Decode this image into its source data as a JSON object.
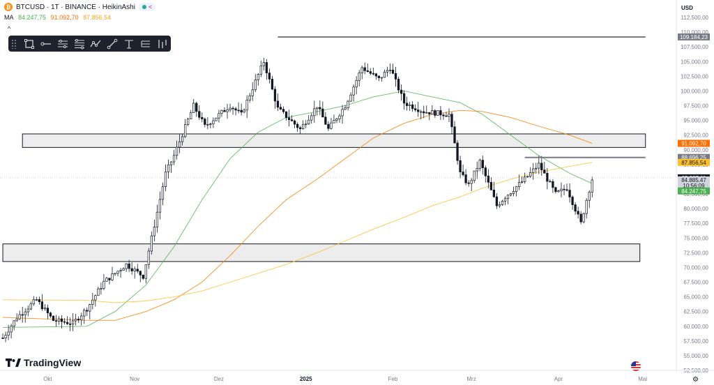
{
  "header": {
    "symbol": "BTCUSD · 1T · BINANCE · HeikinAshi",
    "ma_label": "MA",
    "ma_values": [
      "84.247,75",
      "91.092,70",
      "87.856,54"
    ],
    "ma_colors": [
      "#4caf50",
      "#ff6d00",
      "#fbc02d"
    ],
    "currency": "USD",
    "collapse_glyph": "^"
  },
  "toolbar": {
    "tools": [
      "rectangle-tool-icon",
      "horizontal-ray-icon",
      "parallel-channel-icon",
      "fib-retracement-icon",
      "path-icon",
      "trend-line-icon",
      "anchored-vwap-icon",
      "long-position-icon",
      "forecast-icon"
    ]
  },
  "branding": {
    "logo_text": "TradingView"
  },
  "chart_data": {
    "type": "candlestick",
    "ylim": [
      52500,
      112500
    ],
    "ytick_labels": [
      "112.500,00",
      "110.000,00",
      "107.500,00",
      "105.000,00",
      "102.500,00",
      "100.000,00",
      "97.500,00",
      "95.000,00",
      "92.500,00",
      "90.000,00",
      "87.500,00",
      "85.000,00",
      "82.500,00",
      "80.000,00",
      "77.500,00",
      "75.000,00",
      "72.500,00",
      "70.000,00",
      "67.500,00",
      "65.000,00",
      "62.500,00",
      "60.000,00",
      "57.500,00",
      "55.000,00",
      "52.500,00"
    ],
    "ytick_values": [
      112500,
      110000,
      107500,
      105000,
      102500,
      100000,
      97500,
      95000,
      92500,
      90000,
      87500,
      85000,
      82500,
      80000,
      77500,
      75000,
      72500,
      70000,
      67500,
      65000,
      62500,
      60000,
      57500,
      55000,
      52500
    ],
    "xticks": [
      {
        "label": "Okt",
        "date": "2024-10-01"
      },
      {
        "label": "Nov",
        "date": "2024-11-01"
      },
      {
        "label": "Dez",
        "date": "2024-12-01"
      },
      {
        "label": "2025",
        "date": "2025-01-01"
      },
      {
        "label": "Feb",
        "date": "2025-02-01"
      },
      {
        "label": "Mrz",
        "date": "2025-03-01"
      },
      {
        "label": "Apr",
        "date": "2025-04-01"
      },
      {
        "label": "Mai",
        "date": "2025-05-01"
      }
    ],
    "price_labels": [
      {
        "text": "109.184,23",
        "value": 109184,
        "color": "#787b86"
      },
      {
        "text": "91.092,70",
        "value": 91093,
        "color": "#ff6d00"
      },
      {
        "text": "88.696,25",
        "value": 88696,
        "color": "#787b86"
      },
      {
        "text": "87.856,54",
        "value": 87857,
        "color": "#fbc02d"
      },
      {
        "text": "85.237,11",
        "value": 85237,
        "color": "#131722"
      },
      {
        "text": "84.885,47",
        "value": 84885,
        "color": "#d1d4dc"
      },
      {
        "text": "10:56:09",
        "value": 83900,
        "color": "#d1d4dc"
      },
      {
        "text": "84.247,75",
        "value": 83000,
        "color": "#4caf50"
      }
    ],
    "hlines": [
      {
        "value": 109184,
        "from": "2024-12-22",
        "to": "2025-05-02",
        "color": "#787b86"
      },
      {
        "value": 88696,
        "from": "2025-03-20",
        "to": "2025-05-02",
        "color": "#787b86"
      }
    ],
    "zones": [
      {
        "from": "2024-09-22",
        "to": "2025-05-02",
        "low": 90400,
        "high": 92700
      },
      {
        "from": "2024-09-15",
        "to": "2025-04-30",
        "low": 71000,
        "high": 74000
      }
    ],
    "series": {
      "ma_green": [
        [
          "2024-09-15",
          59800
        ],
        [
          "2024-10-15",
          60000
        ],
        [
          "2024-10-25",
          62500
        ],
        [
          "2024-11-05",
          67000
        ],
        [
          "2024-11-15",
          73500
        ],
        [
          "2024-11-25",
          81500
        ],
        [
          "2024-12-05",
          88500
        ],
        [
          "2024-12-15",
          93000
        ],
        [
          "2024-12-25",
          95500
        ],
        [
          "2025-01-05",
          96500
        ],
        [
          "2025-01-15",
          97500
        ],
        [
          "2025-01-25",
          99000
        ],
        [
          "2025-02-05",
          100000
        ],
        [
          "2025-02-15",
          99000
        ],
        [
          "2025-02-25",
          98000
        ],
        [
          "2025-03-05",
          96000
        ],
        [
          "2025-03-15",
          92500
        ],
        [
          "2025-03-25",
          89000
        ],
        [
          "2025-04-05",
          86000
        ],
        [
          "2025-04-13",
          84250
        ]
      ],
      "ma_orange": [
        [
          "2024-09-15",
          61500
        ],
        [
          "2024-10-15",
          61000
        ],
        [
          "2024-10-25",
          61000
        ],
        [
          "2024-11-05",
          62500
        ],
        [
          "2024-11-15",
          64500
        ],
        [
          "2024-11-25",
          67500
        ],
        [
          "2024-12-05",
          72000
        ],
        [
          "2024-12-15",
          77000
        ],
        [
          "2024-12-25",
          81500
        ],
        [
          "2025-01-05",
          85000
        ],
        [
          "2025-01-15",
          88500
        ],
        [
          "2025-01-25",
          92000
        ],
        [
          "2025-02-05",
          94500
        ],
        [
          "2025-02-15",
          96000
        ],
        [
          "2025-02-25",
          96700
        ],
        [
          "2025-03-05",
          96500
        ],
        [
          "2025-03-15",
          95500
        ],
        [
          "2025-03-25",
          94000
        ],
        [
          "2025-04-05",
          92500
        ],
        [
          "2025-04-13",
          91090
        ]
      ],
      "ma_yellow": [
        [
          "2024-09-15",
          64500
        ],
        [
          "2024-10-15",
          64400
        ],
        [
          "2024-10-25",
          64000
        ],
        [
          "2024-11-05",
          64300
        ],
        [
          "2024-11-15",
          65000
        ],
        [
          "2024-11-25",
          66000
        ],
        [
          "2024-12-05",
          67500
        ],
        [
          "2024-12-15",
          69000
        ],
        [
          "2024-12-25",
          70500
        ],
        [
          "2025-01-05",
          72500
        ],
        [
          "2025-01-15",
          74500
        ],
        [
          "2025-01-25",
          76500
        ],
        [
          "2025-02-05",
          78500
        ],
        [
          "2025-02-15",
          80500
        ],
        [
          "2025-02-25",
          82000
        ],
        [
          "2025-03-05",
          83500
        ],
        [
          "2025-03-15",
          85000
        ],
        [
          "2025-03-25",
          86200
        ],
        [
          "2025-04-05",
          87200
        ],
        [
          "2025-04-13",
          87860
        ]
      ],
      "candle_anchors": [
        [
          "2024-09-15",
          58000
        ],
        [
          "2024-09-20",
          61500
        ],
        [
          "2024-09-27",
          64500
        ],
        [
          "2024-10-03",
          61000
        ],
        [
          "2024-10-10",
          60500
        ],
        [
          "2024-10-15",
          63000
        ],
        [
          "2024-10-21",
          67500
        ],
        [
          "2024-10-29",
          70500
        ],
        [
          "2024-11-04",
          68500
        ],
        [
          "2024-11-07",
          75000
        ],
        [
          "2024-11-12",
          86000
        ],
        [
          "2024-11-15",
          89000
        ],
        [
          "2024-11-22",
          97500
        ],
        [
          "2024-11-26",
          94000
        ],
        [
          "2024-12-05",
          97500
        ],
        [
          "2024-12-09",
          96000
        ],
        [
          "2024-12-17",
          105000
        ],
        [
          "2024-12-22",
          97000
        ],
        [
          "2024-12-30",
          93500
        ],
        [
          "2025-01-05",
          97500
        ],
        [
          "2025-01-09",
          93500
        ],
        [
          "2025-01-15",
          97500
        ],
        [
          "2025-01-21",
          104000
        ],
        [
          "2025-01-27",
          102000
        ],
        [
          "2025-01-31",
          104000
        ],
        [
          "2025-02-05",
          98000
        ],
        [
          "2025-02-12",
          96500
        ],
        [
          "2025-02-21",
          96000
        ],
        [
          "2025-02-25",
          86000
        ],
        [
          "2025-02-28",
          84000
        ],
        [
          "2025-03-04",
          88000
        ],
        [
          "2025-03-10",
          80500
        ],
        [
          "2025-03-13",
          82000
        ],
        [
          "2025-03-20",
          85000
        ],
        [
          "2025-03-25",
          87500
        ],
        [
          "2025-03-31",
          82500
        ],
        [
          "2025-04-04",
          83500
        ],
        [
          "2025-04-09",
          77500
        ],
        [
          "2025-04-11",
          81500
        ],
        [
          "2025-04-13",
          85000
        ]
      ]
    }
  }
}
